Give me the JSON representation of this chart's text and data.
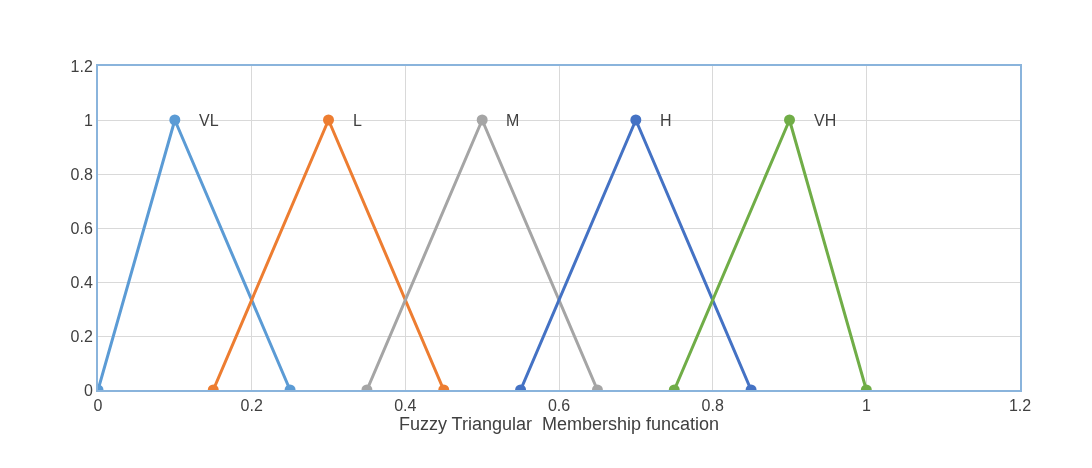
{
  "chart_data": {
    "type": "line",
    "xlabel": "Fuzzy Triangular  Membership funcation",
    "xlim": [
      0,
      1.2
    ],
    "xticks": [
      0,
      0.2,
      0.4,
      0.6,
      0.8,
      1,
      1.2
    ],
    "ylim": [
      0,
      1.2
    ],
    "yticks": [
      0,
      0.2,
      0.4,
      0.6,
      0.8,
      1,
      1.2
    ],
    "grid": true,
    "legend": false,
    "marker": "circle",
    "line_style": "solid",
    "series": [
      {
        "name": "VL",
        "color": "#5b9bd5",
        "x": [
          0,
          0.1,
          0.25
        ],
        "values": [
          0,
          1,
          0
        ]
      },
      {
        "name": "L",
        "color": "#ed7d31",
        "x": [
          0.15,
          0.3,
          0.45
        ],
        "values": [
          0,
          1,
          0
        ]
      },
      {
        "name": "M",
        "color": "#a5a5a5",
        "x": [
          0.35,
          0.5,
          0.65
        ],
        "values": [
          0,
          1,
          0
        ]
      },
      {
        "name": "H",
        "color": "#4472c4",
        "x": [
          0.55,
          0.7,
          0.85
        ],
        "values": [
          0,
          1,
          0
        ]
      },
      {
        "name": "VH",
        "color": "#70ad47",
        "x": [
          0.75,
          0.9,
          1
        ],
        "values": [
          0,
          1,
          0
        ]
      }
    ]
  }
}
